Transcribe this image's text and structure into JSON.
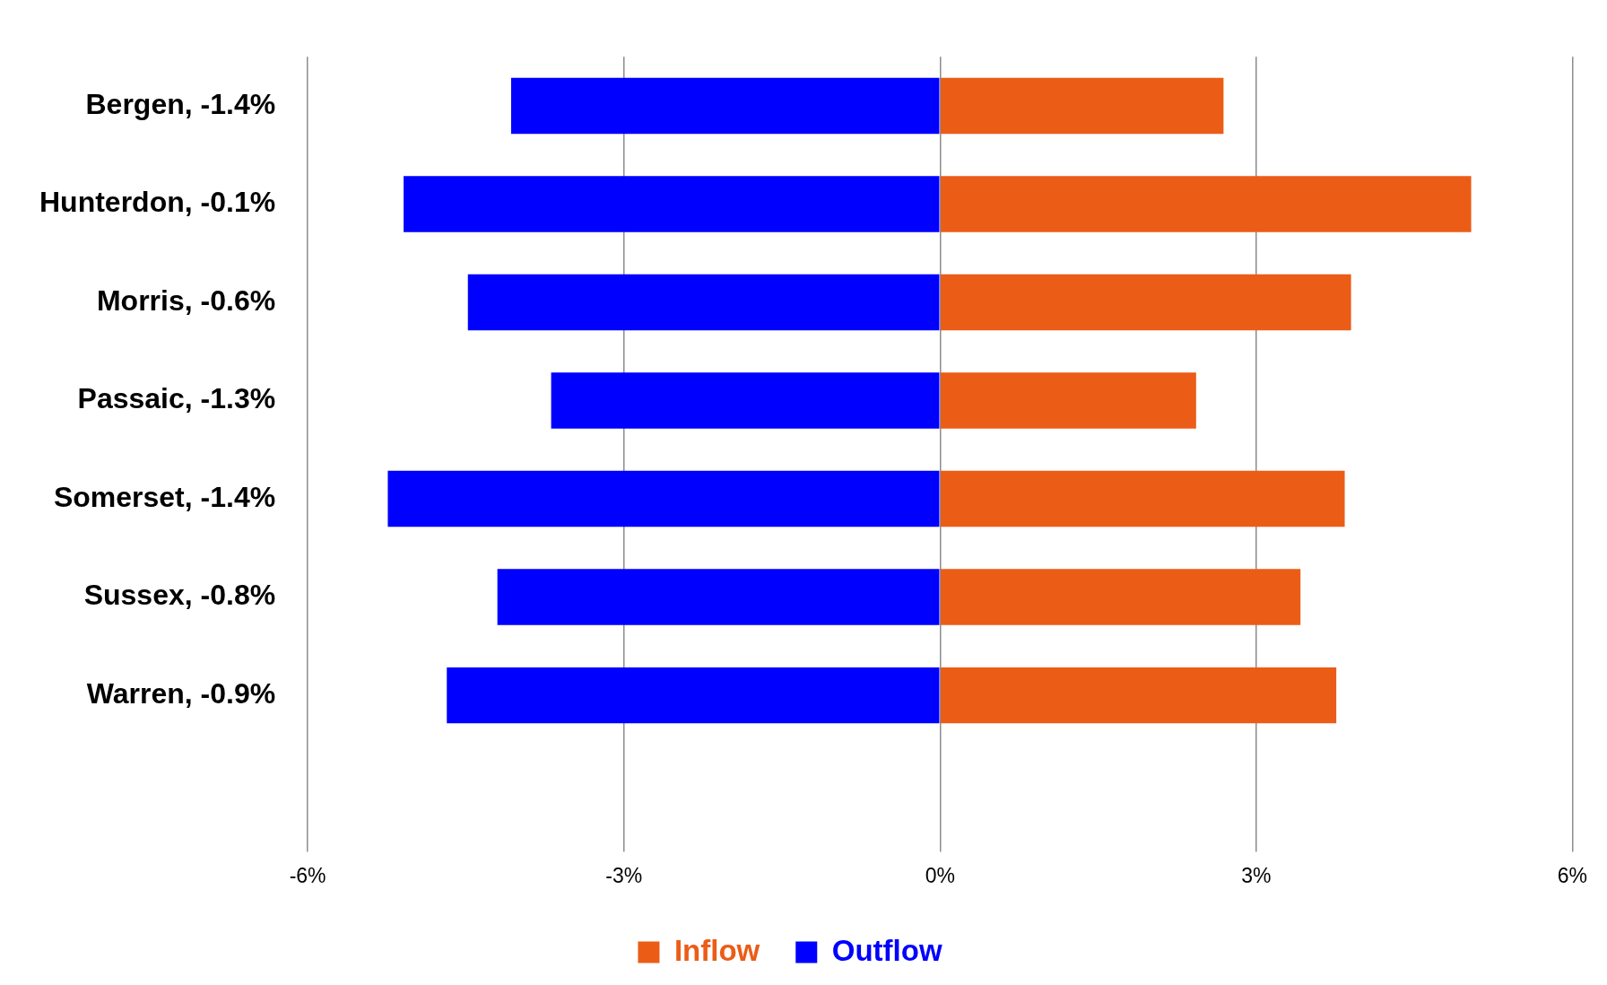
{
  "chart_data": {
    "type": "bar",
    "orientation": "horizontal",
    "stacked": true,
    "categories": [
      "Bergen, -1.4%",
      "Hunterdon, -0.1%",
      "Morris, -0.6%",
      "Passaic, -1.3%",
      "Somerset, -1.4%",
      "Sussex, -0.8%",
      "Warren, -0.9%",
      null
    ],
    "series": [
      {
        "name": "Inflow",
        "color": "#eb5c17",
        "values": [
          2.69,
          5.04,
          3.9,
          2.43,
          3.84,
          3.42,
          3.76,
          null
        ]
      },
      {
        "name": "Outflow",
        "color": "#0000ff",
        "values": [
          -4.07,
          -5.09,
          -4.48,
          -3.69,
          -5.24,
          -4.2,
          -4.68,
          null
        ]
      }
    ],
    "xlim": [
      -6,
      6
    ],
    "xticks": [
      {
        "value": -6,
        "label": "-6%"
      },
      {
        "value": -3,
        "label": "-3%"
      },
      {
        "value": 0,
        "label": "0%"
      },
      {
        "value": 3,
        "label": "3%"
      },
      {
        "value": 6,
        "label": "6%"
      }
    ],
    "grid": "x",
    "legend": "bottom"
  }
}
